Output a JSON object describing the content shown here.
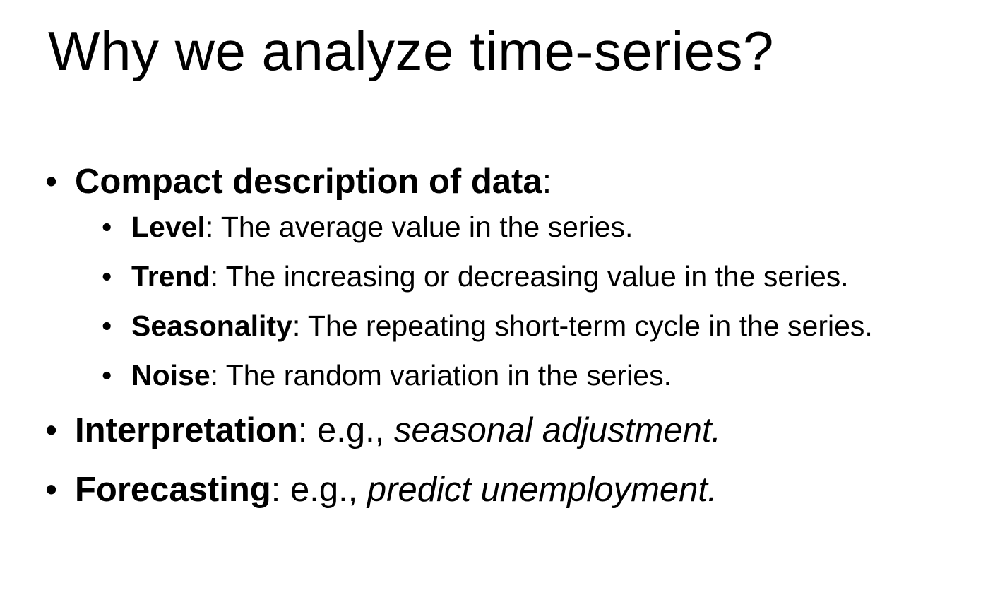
{
  "slide": {
    "title": "Why we analyze time-series?",
    "bullet_glyph": "•",
    "items": [
      {
        "term": "Compact description of data",
        "separator": ":",
        "subitems": [
          {
            "term": "Level",
            "text": ": The average value in the series."
          },
          {
            "term": "Trend",
            "text": ": The increasing or decreasing value in the series."
          },
          {
            "term": "Seasonality",
            "text": ": The repeating short-term cycle in the series."
          },
          {
            "term": "Noise",
            "text": ": The random variation in the series."
          }
        ]
      },
      {
        "term": "Interpretation",
        "text": ": e.g., ",
        "example": "seasonal adjustment."
      },
      {
        "term": "Forecasting",
        "text": ": e.g., ",
        "example": "predict unemployment."
      }
    ]
  }
}
